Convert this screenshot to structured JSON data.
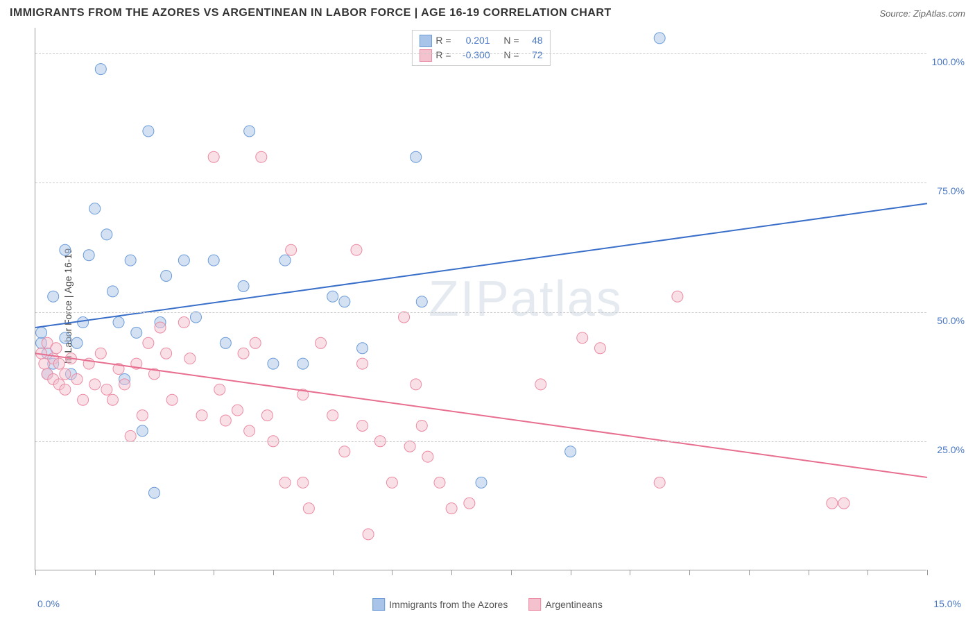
{
  "title": "IMMIGRANTS FROM THE AZORES VS ARGENTINEAN IN LABOR FORCE | AGE 16-19 CORRELATION CHART",
  "source": "Source: ZipAtlas.com",
  "ylabel": "In Labor Force | Age 16-19",
  "watermark": "ZIPatlas",
  "chart": {
    "type": "scatter",
    "xlim": [
      0,
      15
    ],
    "ylim": [
      0,
      105
    ],
    "x_tick_positions": [
      0,
      1,
      2,
      3,
      4,
      5,
      6,
      7,
      8,
      9,
      10,
      11,
      12,
      13,
      14,
      15
    ],
    "x_tick_labels": {
      "0": "0.0%",
      "15": "15.0%"
    },
    "y_gridlines": [
      25,
      50,
      75,
      100
    ],
    "y_tick_labels": {
      "25": "25.0%",
      "50": "50.0%",
      "75": "75.0%",
      "100": "100.0%"
    },
    "background_color": "#ffffff",
    "grid_color": "#cccccc",
    "axis_color": "#999999",
    "axis_label_color": "#4a78c4",
    "marker_radius": 8,
    "marker_opacity": 0.5,
    "line_width": 2
  },
  "series": [
    {
      "name": "Immigrants from the Azores",
      "color_fill": "#a8c4e8",
      "color_stroke": "#6a9bd8",
      "line_color": "#3a6fc9",
      "r_label": "R =",
      "r_value": "0.201",
      "n_label": "N =",
      "n_value": "48",
      "trend": {
        "x1": 0,
        "y1": 47,
        "x2": 15,
        "y2": 71
      },
      "points": [
        {
          "x": 0.1,
          "y": 44
        },
        {
          "x": 0.1,
          "y": 46
        },
        {
          "x": 0.2,
          "y": 42
        },
        {
          "x": 0.2,
          "y": 38
        },
        {
          "x": 0.3,
          "y": 53
        },
        {
          "x": 0.3,
          "y": 40
        },
        {
          "x": 0.5,
          "y": 62
        },
        {
          "x": 0.5,
          "y": 45
        },
        {
          "x": 0.6,
          "y": 38
        },
        {
          "x": 0.7,
          "y": 44
        },
        {
          "x": 0.8,
          "y": 48
        },
        {
          "x": 0.9,
          "y": 61
        },
        {
          "x": 1.0,
          "y": 70
        },
        {
          "x": 1.1,
          "y": 97
        },
        {
          "x": 1.2,
          "y": 65
        },
        {
          "x": 1.3,
          "y": 54
        },
        {
          "x": 1.4,
          "y": 48
        },
        {
          "x": 1.5,
          "y": 37
        },
        {
          "x": 1.6,
          "y": 60
        },
        {
          "x": 1.7,
          "y": 46
        },
        {
          "x": 1.8,
          "y": 27
        },
        {
          "x": 1.9,
          "y": 85
        },
        {
          "x": 2.0,
          "y": 15
        },
        {
          "x": 2.1,
          "y": 48
        },
        {
          "x": 2.2,
          "y": 57
        },
        {
          "x": 2.5,
          "y": 60
        },
        {
          "x": 2.7,
          "y": 49
        },
        {
          "x": 3.0,
          "y": 60
        },
        {
          "x": 3.2,
          "y": 44
        },
        {
          "x": 3.5,
          "y": 55
        },
        {
          "x": 3.6,
          "y": 85
        },
        {
          "x": 4.0,
          "y": 40
        },
        {
          "x": 4.2,
          "y": 60
        },
        {
          "x": 4.5,
          "y": 40
        },
        {
          "x": 5.0,
          "y": 53
        },
        {
          "x": 5.2,
          "y": 52
        },
        {
          "x": 5.5,
          "y": 43
        },
        {
          "x": 6.4,
          "y": 80
        },
        {
          "x": 6.5,
          "y": 52
        },
        {
          "x": 7.5,
          "y": 17
        },
        {
          "x": 9.0,
          "y": 23
        },
        {
          "x": 10.5,
          "y": 103
        }
      ]
    },
    {
      "name": "Argentineans",
      "color_fill": "#f4c2cf",
      "color_stroke": "#eb8aa3",
      "line_color": "#e86e8f",
      "r_label": "R =",
      "r_value": "-0.300",
      "n_label": "N =",
      "n_value": "72",
      "trend": {
        "x1": 0,
        "y1": 42,
        "x2": 15,
        "y2": 18
      },
      "points": [
        {
          "x": 0.1,
          "y": 42
        },
        {
          "x": 0.15,
          "y": 40
        },
        {
          "x": 0.2,
          "y": 44
        },
        {
          "x": 0.2,
          "y": 38
        },
        {
          "x": 0.3,
          "y": 41
        },
        {
          "x": 0.3,
          "y": 37
        },
        {
          "x": 0.35,
          "y": 43
        },
        {
          "x": 0.4,
          "y": 40
        },
        {
          "x": 0.4,
          "y": 36
        },
        {
          "x": 0.5,
          "y": 38
        },
        {
          "x": 0.5,
          "y": 35
        },
        {
          "x": 0.6,
          "y": 41
        },
        {
          "x": 0.7,
          "y": 37
        },
        {
          "x": 0.8,
          "y": 33
        },
        {
          "x": 0.9,
          "y": 40
        },
        {
          "x": 1.0,
          "y": 36
        },
        {
          "x": 1.1,
          "y": 42
        },
        {
          "x": 1.2,
          "y": 35
        },
        {
          "x": 1.3,
          "y": 33
        },
        {
          "x": 1.4,
          "y": 39
        },
        {
          "x": 1.5,
          "y": 36
        },
        {
          "x": 1.6,
          "y": 26
        },
        {
          "x": 1.7,
          "y": 40
        },
        {
          "x": 1.8,
          "y": 30
        },
        {
          "x": 1.9,
          "y": 44
        },
        {
          "x": 2.0,
          "y": 38
        },
        {
          "x": 2.1,
          "y": 47
        },
        {
          "x": 2.2,
          "y": 42
        },
        {
          "x": 2.3,
          "y": 33
        },
        {
          "x": 2.5,
          "y": 48
        },
        {
          "x": 2.6,
          "y": 41
        },
        {
          "x": 2.8,
          "y": 30
        },
        {
          "x": 3.0,
          "y": 80
        },
        {
          "x": 3.1,
          "y": 35
        },
        {
          "x": 3.2,
          "y": 29
        },
        {
          "x": 3.4,
          "y": 31
        },
        {
          "x": 3.5,
          "y": 42
        },
        {
          "x": 3.6,
          "y": 27
        },
        {
          "x": 3.7,
          "y": 44
        },
        {
          "x": 3.8,
          "y": 80
        },
        {
          "x": 3.9,
          "y": 30
        },
        {
          "x": 4.0,
          "y": 25
        },
        {
          "x": 4.2,
          "y": 17
        },
        {
          "x": 4.3,
          "y": 62
        },
        {
          "x": 4.5,
          "y": 34
        },
        {
          "x": 4.5,
          "y": 17
        },
        {
          "x": 4.6,
          "y": 12
        },
        {
          "x": 4.8,
          "y": 44
        },
        {
          "x": 5.0,
          "y": 30
        },
        {
          "x": 5.2,
          "y": 23
        },
        {
          "x": 5.4,
          "y": 62
        },
        {
          "x": 5.5,
          "y": 40
        },
        {
          "x": 5.5,
          "y": 28
        },
        {
          "x": 5.6,
          "y": 7
        },
        {
          "x": 5.8,
          "y": 25
        },
        {
          "x": 6.0,
          "y": 17
        },
        {
          "x": 6.2,
          "y": 49
        },
        {
          "x": 6.3,
          "y": 24
        },
        {
          "x": 6.4,
          "y": 36
        },
        {
          "x": 6.5,
          "y": 28
        },
        {
          "x": 6.6,
          "y": 22
        },
        {
          "x": 6.8,
          "y": 17
        },
        {
          "x": 7.0,
          "y": 12
        },
        {
          "x": 7.3,
          "y": 13
        },
        {
          "x": 8.5,
          "y": 36
        },
        {
          "x": 9.2,
          "y": 45
        },
        {
          "x": 9.5,
          "y": 43
        },
        {
          "x": 10.5,
          "y": 17
        },
        {
          "x": 10.8,
          "y": 53
        },
        {
          "x": 13.4,
          "y": 13
        },
        {
          "x": 13.6,
          "y": 13
        }
      ]
    }
  ],
  "bottom_legend": [
    {
      "label": "Immigrants from the Azores",
      "fill": "#a8c4e8",
      "stroke": "#6a9bd8"
    },
    {
      "label": "Argentineans",
      "fill": "#f4c2cf",
      "stroke": "#eb8aa3"
    }
  ]
}
